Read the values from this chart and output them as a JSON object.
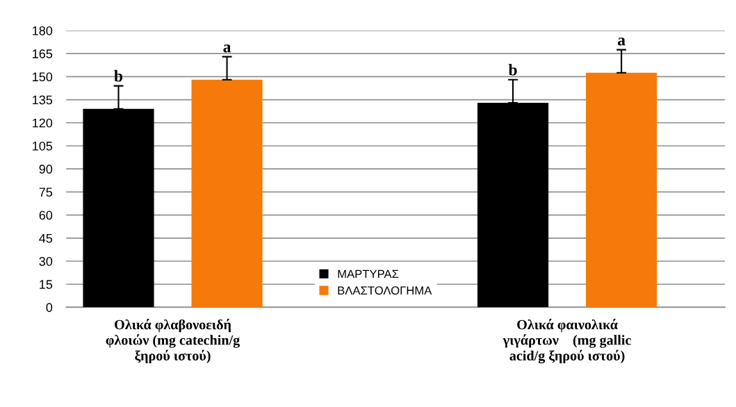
{
  "chart_data": {
    "type": "bar",
    "categories": [
      "Ολικά φλαβονοειδή\nφλοιών (mg catechin/g\nξηρού ιστού)",
      "Ολικά φαινολικά\nγιγάρτων    (mg gallic\nacid/g ξηρού ιστού)"
    ],
    "series": [
      {
        "name": "ΜΑΡΤΥΡΑΣ",
        "color": "#000000",
        "values": [
          129,
          133
        ],
        "errors": [
          15,
          15
        ],
        "value_labels": [
          "b",
          "b"
        ]
      },
      {
        "name": "ΒΛΑΣΤΟΛΟΓΗΜΑ",
        "color": "#f57a0a",
        "values": [
          148,
          152.5
        ],
        "errors": [
          15,
          15
        ],
        "value_labels": [
          "a",
          "a"
        ]
      }
    ],
    "ylim": [
      0,
      180
    ],
    "yticks": [
      0,
      15,
      30,
      45,
      60,
      75,
      90,
      105,
      120,
      135,
      150,
      165,
      180
    ],
    "grid": "y",
    "legend": "bottom"
  }
}
